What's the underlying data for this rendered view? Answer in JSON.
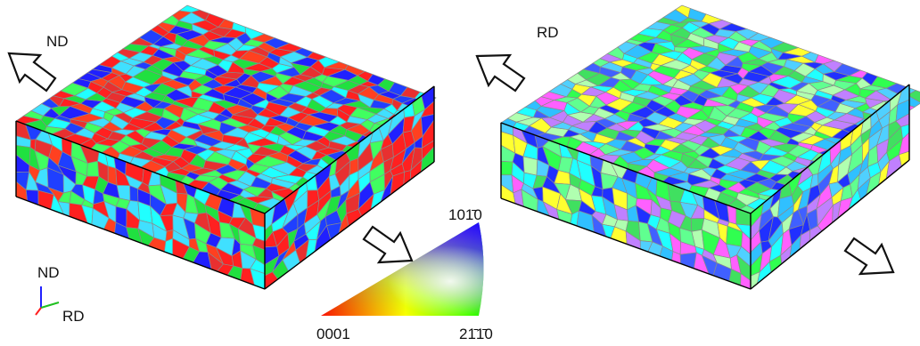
{
  "arrows": {
    "left": "ND",
    "middle": "RD"
  },
  "axes_legend": {
    "vertical": "ND",
    "horizontal": "RD"
  },
  "ipf_legend": {
    "top": "101̄0",
    "left": "0001",
    "right": "21̄1̄0"
  }
}
